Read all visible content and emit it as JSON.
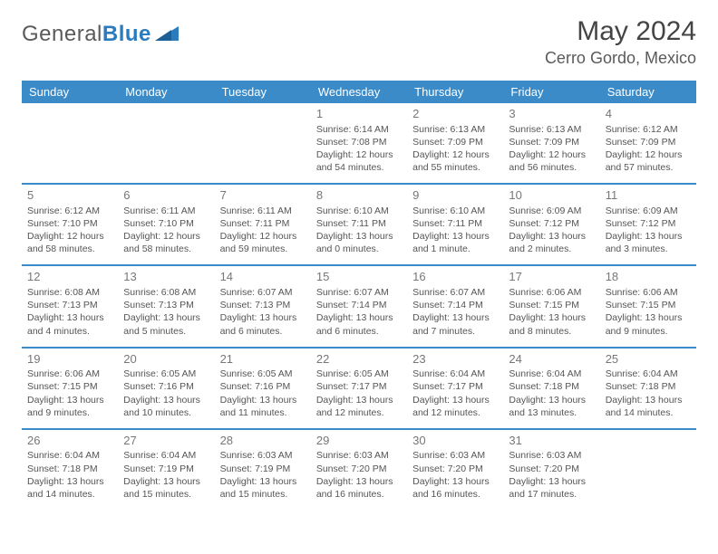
{
  "logo": {
    "part1": "General",
    "part2": "Blue"
  },
  "title": "May 2024",
  "location": "Cerro Gordo, Mexico",
  "colors": {
    "header_bg": "#3b8bc9",
    "header_text": "#ffffff",
    "row_border": "#3b8bc9",
    "body_text": "#555555",
    "daynum_text": "#777777",
    "logo_gray": "#5a5a5a",
    "logo_blue": "#2b7bbf",
    "background": "#ffffff"
  },
  "daysOfWeek": [
    "Sunday",
    "Monday",
    "Tuesday",
    "Wednesday",
    "Thursday",
    "Friday",
    "Saturday"
  ],
  "weeks": [
    [
      null,
      null,
      null,
      {
        "d": "1",
        "sr": "Sunrise: 6:14 AM",
        "ss": "Sunset: 7:08 PM",
        "dl": "Daylight: 12 hours and 54 minutes."
      },
      {
        "d": "2",
        "sr": "Sunrise: 6:13 AM",
        "ss": "Sunset: 7:09 PM",
        "dl": "Daylight: 12 hours and 55 minutes."
      },
      {
        "d": "3",
        "sr": "Sunrise: 6:13 AM",
        "ss": "Sunset: 7:09 PM",
        "dl": "Daylight: 12 hours and 56 minutes."
      },
      {
        "d": "4",
        "sr": "Sunrise: 6:12 AM",
        "ss": "Sunset: 7:09 PM",
        "dl": "Daylight: 12 hours and 57 minutes."
      }
    ],
    [
      {
        "d": "5",
        "sr": "Sunrise: 6:12 AM",
        "ss": "Sunset: 7:10 PM",
        "dl": "Daylight: 12 hours and 58 minutes."
      },
      {
        "d": "6",
        "sr": "Sunrise: 6:11 AM",
        "ss": "Sunset: 7:10 PM",
        "dl": "Daylight: 12 hours and 58 minutes."
      },
      {
        "d": "7",
        "sr": "Sunrise: 6:11 AM",
        "ss": "Sunset: 7:11 PM",
        "dl": "Daylight: 12 hours and 59 minutes."
      },
      {
        "d": "8",
        "sr": "Sunrise: 6:10 AM",
        "ss": "Sunset: 7:11 PM",
        "dl": "Daylight: 13 hours and 0 minutes."
      },
      {
        "d": "9",
        "sr": "Sunrise: 6:10 AM",
        "ss": "Sunset: 7:11 PM",
        "dl": "Daylight: 13 hours and 1 minute."
      },
      {
        "d": "10",
        "sr": "Sunrise: 6:09 AM",
        "ss": "Sunset: 7:12 PM",
        "dl": "Daylight: 13 hours and 2 minutes."
      },
      {
        "d": "11",
        "sr": "Sunrise: 6:09 AM",
        "ss": "Sunset: 7:12 PM",
        "dl": "Daylight: 13 hours and 3 minutes."
      }
    ],
    [
      {
        "d": "12",
        "sr": "Sunrise: 6:08 AM",
        "ss": "Sunset: 7:13 PM",
        "dl": "Daylight: 13 hours and 4 minutes."
      },
      {
        "d": "13",
        "sr": "Sunrise: 6:08 AM",
        "ss": "Sunset: 7:13 PM",
        "dl": "Daylight: 13 hours and 5 minutes."
      },
      {
        "d": "14",
        "sr": "Sunrise: 6:07 AM",
        "ss": "Sunset: 7:13 PM",
        "dl": "Daylight: 13 hours and 6 minutes."
      },
      {
        "d": "15",
        "sr": "Sunrise: 6:07 AM",
        "ss": "Sunset: 7:14 PM",
        "dl": "Daylight: 13 hours and 6 minutes."
      },
      {
        "d": "16",
        "sr": "Sunrise: 6:07 AM",
        "ss": "Sunset: 7:14 PM",
        "dl": "Daylight: 13 hours and 7 minutes."
      },
      {
        "d": "17",
        "sr": "Sunrise: 6:06 AM",
        "ss": "Sunset: 7:15 PM",
        "dl": "Daylight: 13 hours and 8 minutes."
      },
      {
        "d": "18",
        "sr": "Sunrise: 6:06 AM",
        "ss": "Sunset: 7:15 PM",
        "dl": "Daylight: 13 hours and 9 minutes."
      }
    ],
    [
      {
        "d": "19",
        "sr": "Sunrise: 6:06 AM",
        "ss": "Sunset: 7:15 PM",
        "dl": "Daylight: 13 hours and 9 minutes."
      },
      {
        "d": "20",
        "sr": "Sunrise: 6:05 AM",
        "ss": "Sunset: 7:16 PM",
        "dl": "Daylight: 13 hours and 10 minutes."
      },
      {
        "d": "21",
        "sr": "Sunrise: 6:05 AM",
        "ss": "Sunset: 7:16 PM",
        "dl": "Daylight: 13 hours and 11 minutes."
      },
      {
        "d": "22",
        "sr": "Sunrise: 6:05 AM",
        "ss": "Sunset: 7:17 PM",
        "dl": "Daylight: 13 hours and 12 minutes."
      },
      {
        "d": "23",
        "sr": "Sunrise: 6:04 AM",
        "ss": "Sunset: 7:17 PM",
        "dl": "Daylight: 13 hours and 12 minutes."
      },
      {
        "d": "24",
        "sr": "Sunrise: 6:04 AM",
        "ss": "Sunset: 7:18 PM",
        "dl": "Daylight: 13 hours and 13 minutes."
      },
      {
        "d": "25",
        "sr": "Sunrise: 6:04 AM",
        "ss": "Sunset: 7:18 PM",
        "dl": "Daylight: 13 hours and 14 minutes."
      }
    ],
    [
      {
        "d": "26",
        "sr": "Sunrise: 6:04 AM",
        "ss": "Sunset: 7:18 PM",
        "dl": "Daylight: 13 hours and 14 minutes."
      },
      {
        "d": "27",
        "sr": "Sunrise: 6:04 AM",
        "ss": "Sunset: 7:19 PM",
        "dl": "Daylight: 13 hours and 15 minutes."
      },
      {
        "d": "28",
        "sr": "Sunrise: 6:03 AM",
        "ss": "Sunset: 7:19 PM",
        "dl": "Daylight: 13 hours and 15 minutes."
      },
      {
        "d": "29",
        "sr": "Sunrise: 6:03 AM",
        "ss": "Sunset: 7:20 PM",
        "dl": "Daylight: 13 hours and 16 minutes."
      },
      {
        "d": "30",
        "sr": "Sunrise: 6:03 AM",
        "ss": "Sunset: 7:20 PM",
        "dl": "Daylight: 13 hours and 16 minutes."
      },
      {
        "d": "31",
        "sr": "Sunrise: 6:03 AM",
        "ss": "Sunset: 7:20 PM",
        "dl": "Daylight: 13 hours and 17 minutes."
      },
      null
    ]
  ]
}
